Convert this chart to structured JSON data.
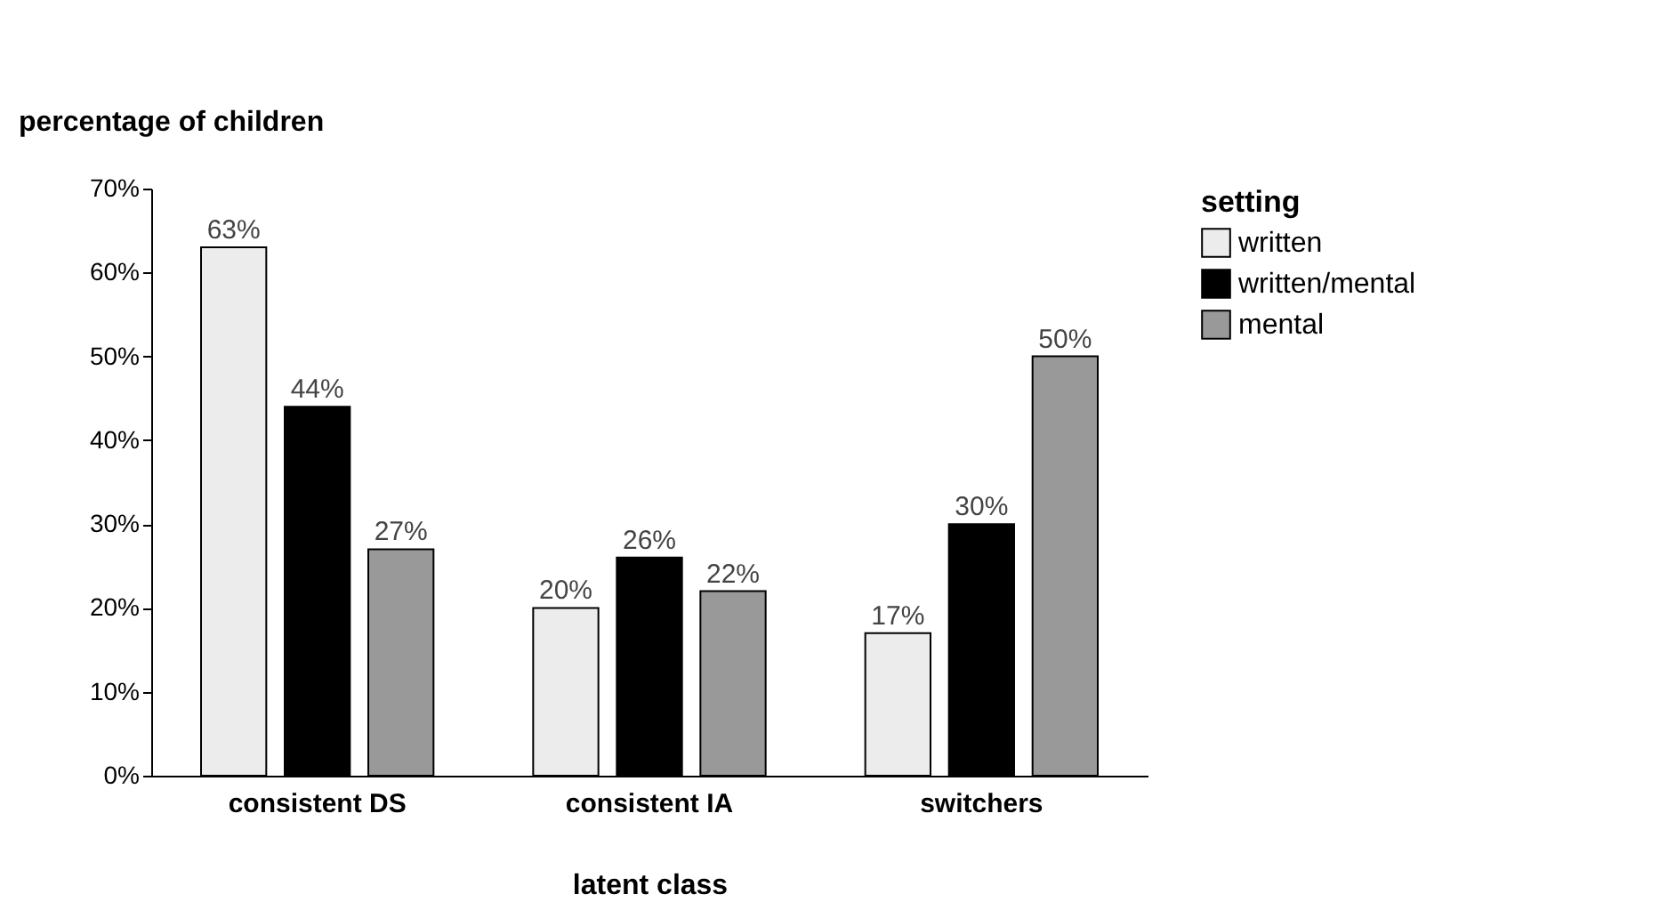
{
  "chart_data": {
    "type": "bar",
    "xlabel": "latent class",
    "ylabel": "percentage of children",
    "legend_title": "setting",
    "legend": "right",
    "categories": [
      "consistent DS",
      "consistent IA",
      "switchers"
    ],
    "series": [
      {
        "name": "written",
        "color": "#ececec",
        "values": [
          63,
          20,
          17
        ],
        "value_labels": [
          "63%",
          "20%",
          "17%"
        ]
      },
      {
        "name": "written/mental",
        "color": "#000000",
        "values": [
          44,
          26,
          30
        ],
        "value_labels": [
          "44%",
          "26%",
          "30%"
        ]
      },
      {
        "name": "mental",
        "color": "#999999",
        "values": [
          27,
          22,
          50
        ],
        "value_labels": [
          "27%",
          "22%",
          "50%"
        ]
      }
    ],
    "ylim": [
      0,
      70
    ],
    "yticks": [
      {
        "value": 0,
        "label": "0%"
      },
      {
        "value": 10,
        "label": "10%"
      },
      {
        "value": 20,
        "label": "20%"
      },
      {
        "value": 30,
        "label": "30%"
      },
      {
        "value": 40,
        "label": "40%"
      },
      {
        "value": 50,
        "label": "50%"
      },
      {
        "value": 60,
        "label": "60%"
      },
      {
        "value": 70,
        "label": "70%"
      }
    ],
    "grid": false
  }
}
